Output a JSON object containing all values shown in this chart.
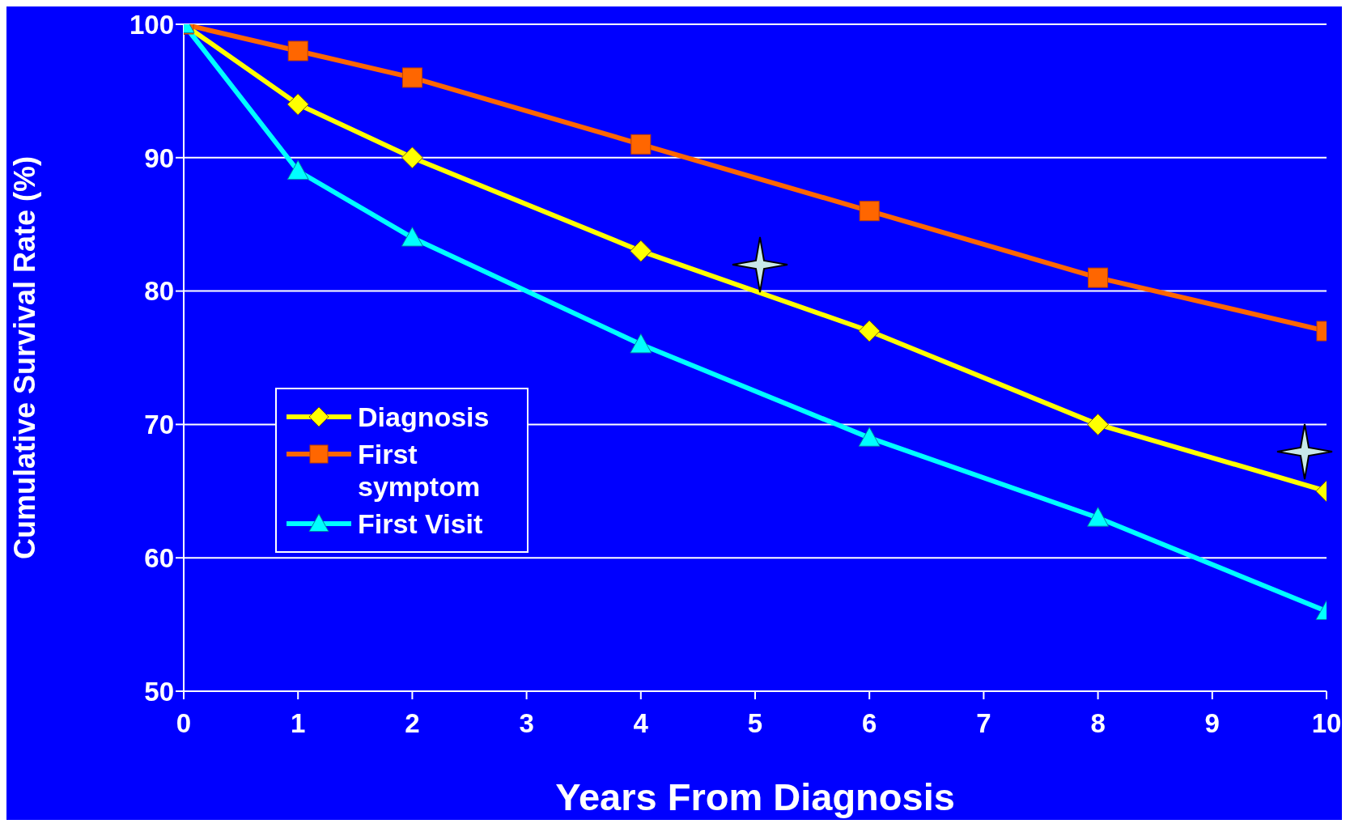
{
  "chart_data": {
    "type": "line",
    "xlabel": "Years From Diagnosis",
    "ylabel": "Cumulative Survival Rate (%)",
    "x": [
      0,
      1,
      2,
      4,
      6,
      8,
      10
    ],
    "series": [
      {
        "name": "Diagnosis",
        "color": "#ffff00",
        "marker": "diamond",
        "values": [
          100,
          94,
          90,
          83,
          77,
          70,
          65
        ]
      },
      {
        "name": "First symptom",
        "color": "#ff6600",
        "marker": "square",
        "values": [
          100,
          98,
          96,
          91,
          86,
          81,
          77
        ]
      },
      {
        "name": "First Visit",
        "color": "#00ffff",
        "marker": "triangle",
        "values": [
          100,
          89,
          84,
          76,
          69,
          63,
          56
        ]
      }
    ],
    "xlim": [
      0,
      10
    ],
    "xticks": [
      0,
      1,
      2,
      3,
      4,
      5,
      6,
      7,
      8,
      9,
      10
    ],
    "ylim": [
      50,
      100
    ],
    "yticks": [
      50,
      60,
      70,
      80,
      90,
      100
    ],
    "grid": "y",
    "legend": "left",
    "line_style": "solid"
  }
}
